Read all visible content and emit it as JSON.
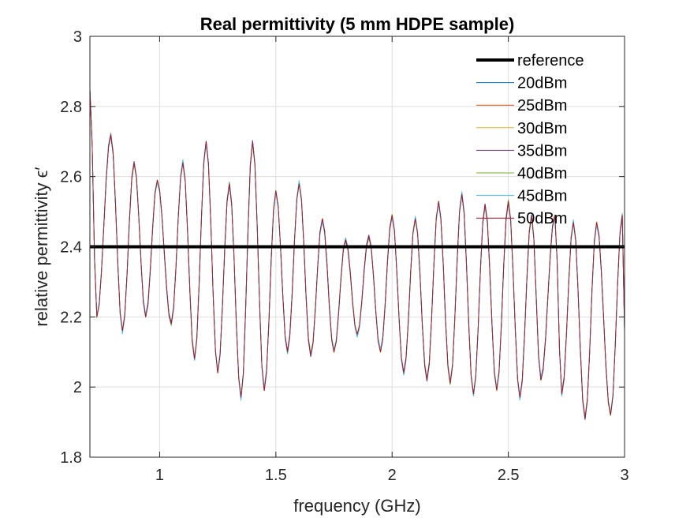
{
  "chart_data": {
    "type": "line",
    "title": "Real permittivity (5 mm HDPE sample)",
    "xlabel": "frequency (GHz)",
    "ylabel": "relative permittivity ϵ′",
    "xlim": [
      0.7,
      3.0
    ],
    "ylim": [
      1.8,
      3.0
    ],
    "xticks": [
      1,
      1.5,
      2,
      2.5,
      3
    ],
    "xtick_labels": [
      "1",
      "1.5",
      "2",
      "2.5",
      "3"
    ],
    "yticks": [
      1.8,
      2.0,
      2.2,
      2.4,
      2.6,
      2.8,
      3.0
    ],
    "ytick_labels": [
      "1.8",
      "2",
      "2.2",
      "2.4",
      "2.6",
      "2.8",
      "3"
    ],
    "grid": true,
    "legend_position": "top-right",
    "reference": {
      "name": "reference",
      "value": 2.4,
      "color": "#000000"
    },
    "oscillation": {
      "frequency_step": 0.01,
      "peaks": [
        [
          0.7,
          2.85
        ],
        [
          0.79,
          2.72
        ],
        [
          0.89,
          2.64
        ],
        [
          0.99,
          2.59
        ],
        [
          1.1,
          2.64
        ],
        [
          1.2,
          2.7
        ],
        [
          1.3,
          2.58
        ],
        [
          1.4,
          2.7
        ],
        [
          1.5,
          2.56
        ],
        [
          1.6,
          2.58
        ],
        [
          1.7,
          2.48
        ],
        [
          1.8,
          2.42
        ],
        [
          1.9,
          2.43
        ],
        [
          2.0,
          2.49
        ],
        [
          2.1,
          2.48
        ],
        [
          2.2,
          2.53
        ],
        [
          2.3,
          2.55
        ],
        [
          2.4,
          2.52
        ],
        [
          2.5,
          2.53
        ],
        [
          2.6,
          2.49
        ],
        [
          2.7,
          2.49
        ],
        [
          2.78,
          2.47
        ],
        [
          2.88,
          2.47
        ],
        [
          2.99,
          2.49
        ]
      ],
      "troughs": [
        [
          0.73,
          2.2
        ],
        [
          0.84,
          2.16
        ],
        [
          0.94,
          2.2
        ],
        [
          1.05,
          2.18
        ],
        [
          1.15,
          2.08
        ],
        [
          1.25,
          2.04
        ],
        [
          1.35,
          1.97
        ],
        [
          1.45,
          1.99
        ],
        [
          1.55,
          2.1
        ],
        [
          1.65,
          2.09
        ],
        [
          1.75,
          2.1
        ],
        [
          1.85,
          2.15
        ],
        [
          1.95,
          2.1
        ],
        [
          2.05,
          2.04
        ],
        [
          2.15,
          2.02
        ],
        [
          2.25,
          2.01
        ],
        [
          2.35,
          1.98
        ],
        [
          2.45,
          1.99
        ],
        [
          2.55,
          1.97
        ],
        [
          2.64,
          2.02
        ],
        [
          2.73,
          1.98
        ],
        [
          2.83,
          1.91
        ],
        [
          2.94,
          1.92
        ],
        [
          3.0,
          2.16
        ]
      ]
    },
    "series": [
      {
        "name": "20dBm",
        "color": "#0072BD",
        "offset": 0.004
      },
      {
        "name": "25dBm",
        "color": "#D95319",
        "offset": -0.003
      },
      {
        "name": "30dBm",
        "color": "#EDB120",
        "offset": 0.002
      },
      {
        "name": "35dBm",
        "color": "#7E2F8E",
        "offset": -0.004
      },
      {
        "name": "40dBm",
        "color": "#77AC30",
        "offset": 0.006
      },
      {
        "name": "45dBm",
        "color": "#4DBEEE",
        "offset": 0.009
      },
      {
        "name": "50dBm",
        "color": "#A2142F",
        "offset": 0.0
      }
    ]
  }
}
